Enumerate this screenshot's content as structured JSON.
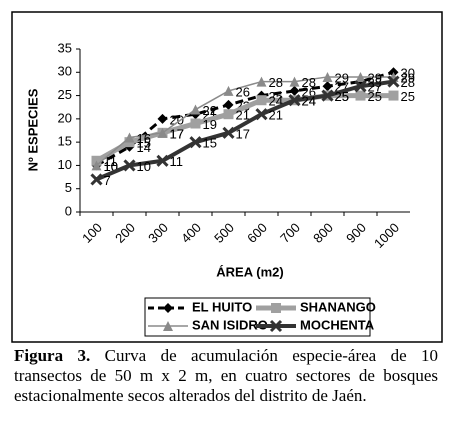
{
  "chart_data": {
    "type": "line",
    "y_label": "Nº ESPECIES",
    "x_label": "ÁREA (m2)",
    "categories": [
      "100",
      "200",
      "300",
      "400",
      "500",
      "600",
      "700",
      "800",
      "900",
      "1000"
    ],
    "series": [
      {
        "name": "EL HUITO",
        "color": "#000000",
        "marker": "diamond",
        "dashed": true,
        "width": 3,
        "values": [
          10,
          14,
          20,
          21,
          23,
          25,
          26,
          27,
          28,
          30
        ]
      },
      {
        "name": "SHANANGO",
        "color": "#a0a0a0",
        "marker": "square",
        "dashed": false,
        "width": 5,
        "values": [
          11,
          15,
          17,
          19,
          21,
          24,
          24,
          25,
          25,
          25
        ]
      },
      {
        "name": "SAN ISIDRO",
        "color": "#8a8a8a",
        "marker": "triangle",
        "dashed": false,
        "width": 1.5,
        "values": [
          10,
          16,
          17,
          22,
          26,
          28,
          28,
          29,
          29,
          29
        ]
      },
      {
        "name": "MOCHENTA",
        "color": "#333333",
        "marker": "x",
        "dashed": false,
        "width": 4,
        "values": [
          7,
          10,
          11,
          15,
          17,
          21,
          24,
          25,
          27,
          28
        ]
      }
    ],
    "ylim": [
      0,
      35
    ],
    "yticks": [
      0,
      5,
      10,
      15,
      20,
      25,
      30,
      35
    ],
    "legend": "bottom"
  },
  "caption": {
    "label": "Figura 3.",
    "text": "Curva de acumulación especie-área de 10 transectos de 50 m x 2 m, en cuatro sectores de bosques estacionalmente secos alterados del distrito de Jaén."
  }
}
